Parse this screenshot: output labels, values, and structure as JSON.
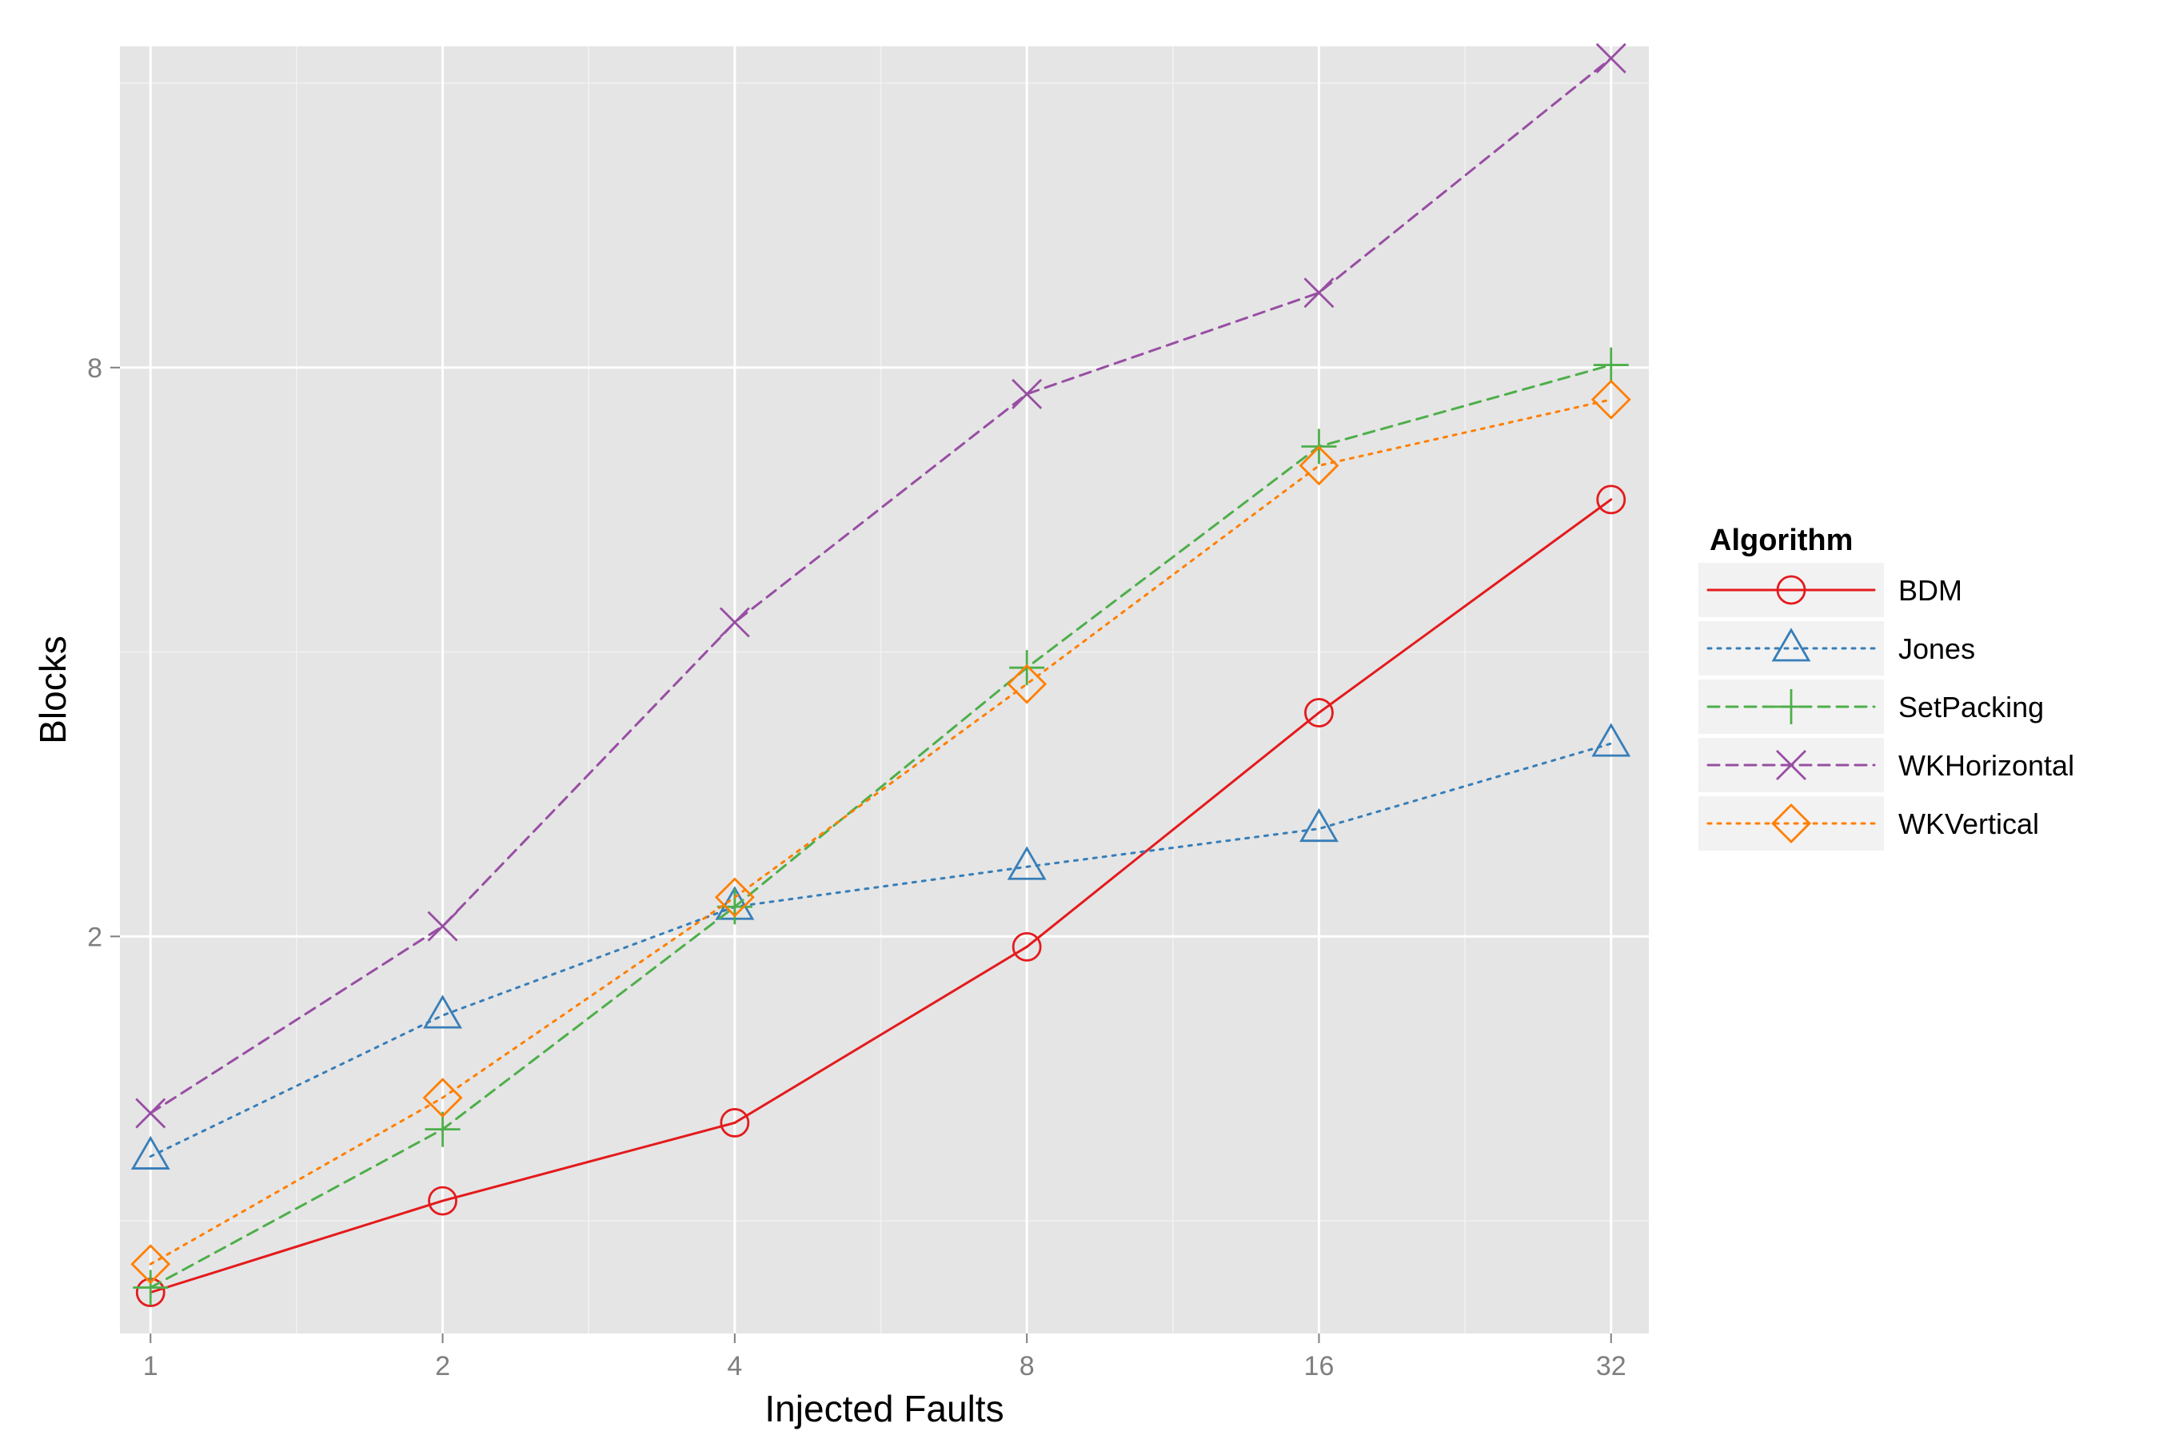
{
  "chart_data": {
    "type": "line",
    "xlabel": "Injected Faults",
    "ylabel": "Blocks",
    "x_scale": "log2",
    "y_scale": "log2",
    "x": [
      1,
      2,
      4,
      8,
      16,
      32
    ],
    "x_tick_labels": [
      "1",
      "2",
      "4",
      "8",
      "16",
      "32"
    ],
    "y_ticks": [
      2,
      8
    ],
    "y_tick_labels": [
      "2",
      "8"
    ],
    "xlim": [
      0.93,
      35
    ],
    "ylim": [
      0.76,
      17.5
    ],
    "grid": true,
    "legend_title": "Algorithm",
    "legend_position": "right",
    "series": [
      {
        "name": "BDM",
        "color": "#E41A1C",
        "dash": "solid",
        "marker": "circle",
        "values": [
          0.84,
          1.05,
          1.27,
          1.95,
          3.45,
          5.8
        ]
      },
      {
        "name": "Jones",
        "color": "#377EB8",
        "dash": "dotted",
        "marker": "triangle",
        "values": [
          1.17,
          1.65,
          2.15,
          2.37,
          2.6,
          3.2
        ]
      },
      {
        "name": "SetPacking",
        "color": "#4DAF4A",
        "dash": "dashed",
        "marker": "plus",
        "values": [
          0.85,
          1.25,
          2.15,
          3.85,
          6.6,
          8.05
        ]
      },
      {
        "name": "WKHorizontal",
        "color": "#984EA3",
        "dash": "dashed",
        "marker": "cross",
        "values": [
          1.3,
          2.05,
          4.3,
          7.5,
          9.6,
          17.0
        ]
      },
      {
        "name": "WKVertical",
        "color": "#FF7F00",
        "dash": "dotted",
        "marker": "diamond",
        "values": [
          0.9,
          1.35,
          2.2,
          3.7,
          6.3,
          7.4
        ]
      }
    ]
  }
}
